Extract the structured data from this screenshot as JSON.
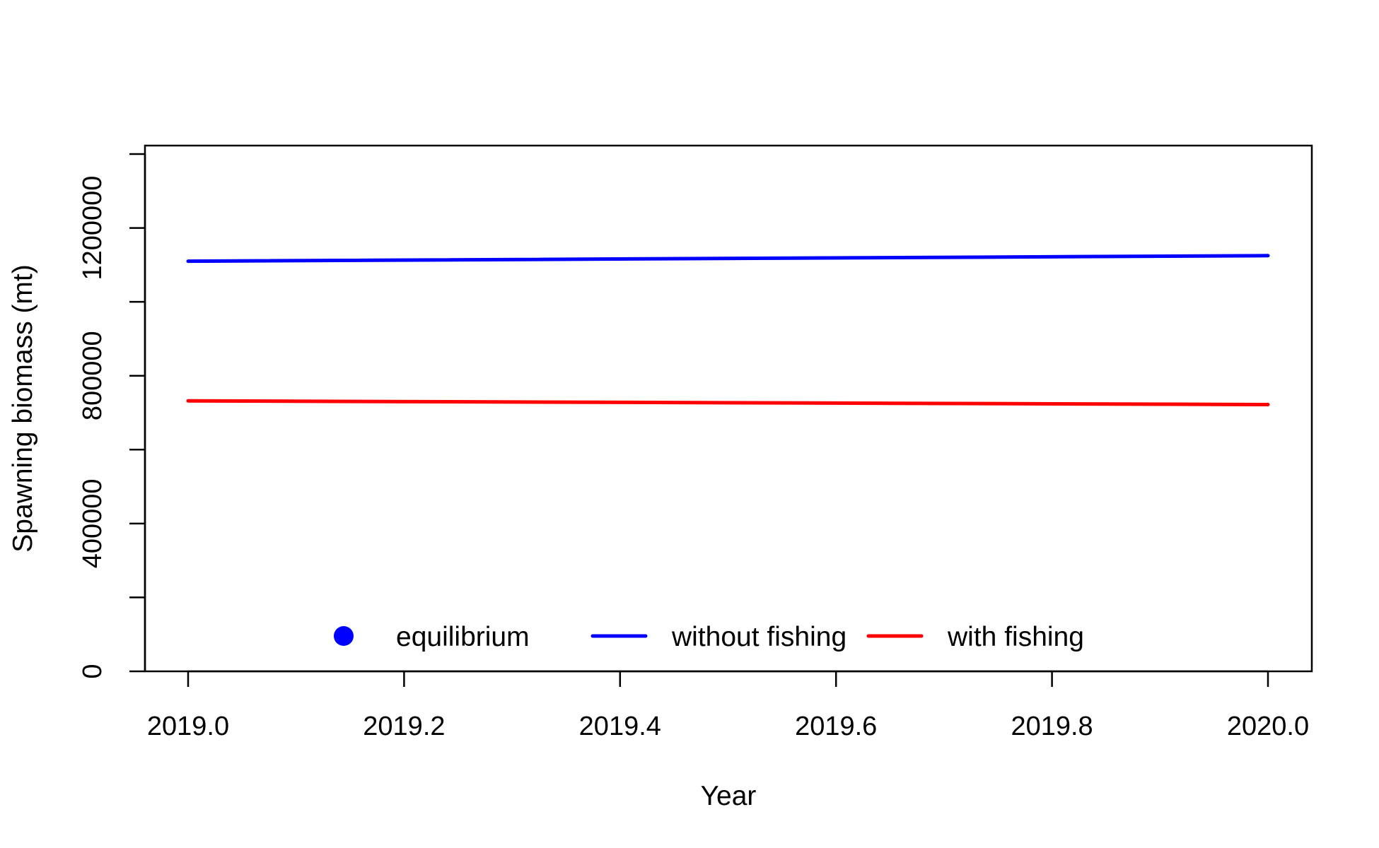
{
  "chart_data": {
    "type": "line",
    "title": "",
    "xlabel": "Year",
    "ylabel": "Spawning biomass (mt)",
    "xlim": [
      2019.0,
      2020.0
    ],
    "ylim": [
      0,
      1400000
    ],
    "x_ticks": [
      2019.0,
      2019.2,
      2019.4,
      2019.6,
      2019.8,
      2020.0
    ],
    "x_tick_labels": [
      "2019.0",
      "2019.2",
      "2019.4",
      "2019.6",
      "2019.8",
      "2020.0"
    ],
    "y_ticks": [
      0,
      200000,
      400000,
      600000,
      800000,
      1000000,
      1200000,
      1400000
    ],
    "y_tick_labels": [
      "0",
      "",
      "400000",
      "",
      "800000",
      "",
      "1200000",
      ""
    ],
    "grid": false,
    "legend_position": "bottom",
    "legend": [
      {
        "label": "equilibrium",
        "symbol": "point",
        "color": "#0000FF"
      },
      {
        "label": "without fishing",
        "symbol": "line",
        "color": "#0000FF"
      },
      {
        "label": "with fishing",
        "symbol": "line",
        "color": "#FF0000"
      }
    ],
    "series": [
      {
        "color": "#0000FF",
        "x": [
          2019.0,
          2020.0
        ],
        "y": [
          1110000,
          1125000
        ]
      },
      {
        "color": "#FF0000",
        "x": [
          2019.0,
          2020.0
        ],
        "y": [
          732000,
          722000
        ]
      }
    ]
  }
}
